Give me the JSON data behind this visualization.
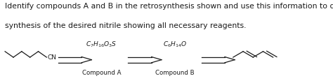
{
  "line1": "Identify compounds A and B in the retrosynthesis shown and use this information to design a",
  "line2": "synthesis of the desired nitrile showing all necessary reagents.",
  "compound_a_formula": "$C_7H_{16}O_3S$",
  "compound_a_label": "Compound A",
  "compound_b_formula": "$C_6H_{14}O$",
  "compound_b_label": "Compound B",
  "bg_color": "#ffffff",
  "text_color": "#1a1a1a",
  "font_size_text": 7.8,
  "font_size_formula": 6.5,
  "font_size_label": 6.2,
  "font_size_cn": 6.5
}
